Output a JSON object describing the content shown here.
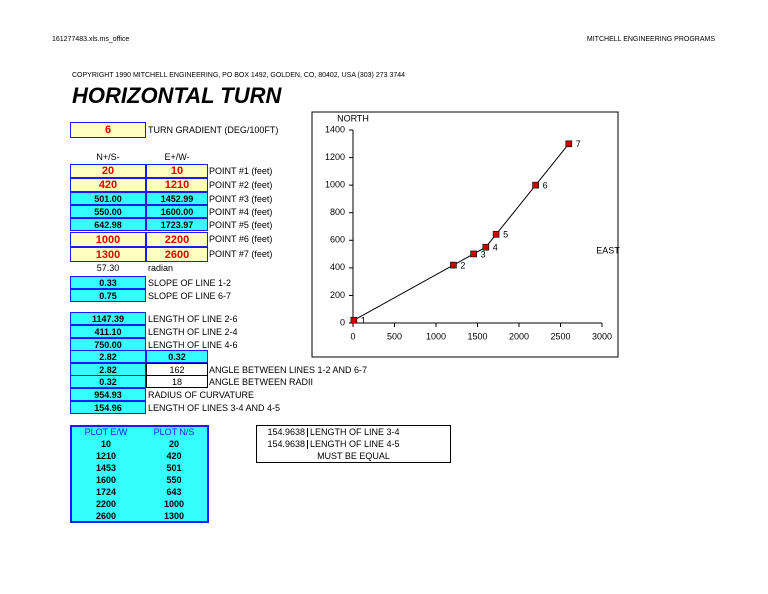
{
  "sheet": {
    "file": "161277483.xls.ms_office",
    "company": "MITCHELL ENGINEERING PROGRAMS",
    "copyright": "COPYRIGHT 1990 MITCHELL ENGINEERING, PO BOX 1492, GOLDEN, CO, 80402, USA  (303) 273 3744",
    "title": "HORIZONTAL TURN",
    "gradient": {
      "value": "6",
      "label": "TURN GRADIENT (DEG/100FT)"
    },
    "headers": [
      "N+/S-",
      "E+/W-"
    ],
    "points": [
      [
        "20",
        "10",
        "POINT #1 (feet)"
      ],
      [
        "420",
        "1210",
        "POINT #2 (feet)"
      ],
      [
        "501.00",
        "1452.99",
        "POINT #3 (feet)"
      ],
      [
        "550.00",
        "1600.00",
        "POINT #4 (feet)"
      ],
      [
        "642.98",
        "1723.97",
        "POINT #5 (feet)"
      ],
      [
        "1000",
        "2200",
        "POINT #6 (feet)"
      ],
      [
        "1300",
        "2600",
        "POINT #7 (feet)"
      ]
    ],
    "radian": [
      "57.30",
      "radian"
    ],
    "slopes": [
      [
        "0.33",
        "SLOPE OF LINE 1-2"
      ],
      [
        "0.75",
        "SLOPE OF LINE 6-7"
      ]
    ],
    "calcs": [
      {
        "a": "1147.39",
        "label": "LENGTH OF LINE 2-6"
      },
      {
        "a": "411.10",
        "label": "LENGTH OF LINE 2-4"
      },
      {
        "a": "750.00",
        "label": "LENGTH OF LINE 4-6"
      },
      {
        "a": "2.82",
        "b": "0.32"
      },
      {
        "a": "2.82",
        "b": "162",
        "label": "ANGLE BETWEEN LINES 1-2 AND 6-7"
      },
      {
        "a": "0.32",
        "b": "18",
        "label": "ANGLE BETWEEN RADII"
      },
      {
        "a": "954.93",
        "label": "RADIUS OF CURVATURE"
      },
      {
        "a": "154.96",
        "label": "LENGTH OF LINES 3-4 AND 4-5"
      }
    ],
    "plot": {
      "headers": [
        "PLOT E/W",
        "PLOT N/S"
      ],
      "rows": [
        [
          "10",
          "20"
        ],
        [
          "1210",
          "420"
        ],
        [
          "1453",
          "501"
        ],
        [
          "1600",
          "550"
        ],
        [
          "1724",
          "643"
        ],
        [
          "2200",
          "1000"
        ],
        [
          "2600",
          "1300"
        ]
      ]
    },
    "check": {
      "rows": [
        [
          "154.9638",
          "LENGTH OF LINE 3-4"
        ],
        [
          "154.9638",
          "LENGTH OF LINE 4-5"
        ]
      ],
      "note": "MUST BE EQUAL"
    }
  },
  "chart_data": {
    "type": "line",
    "y_label": "NORTH",
    "x_label": "EAST",
    "x": [
      10,
      1210,
      1453,
      1600,
      1724,
      2200,
      2600
    ],
    "values": [
      20,
      420,
      501,
      550,
      643,
      1000,
      1300
    ],
    "point_labels": [
      "1",
      "2",
      "3",
      "4",
      "5",
      "6",
      "7"
    ],
    "color": "#000000",
    "marker_color": "#cc0000",
    "xlim": [
      0,
      3000
    ],
    "xticks": [
      0,
      500,
      1000,
      1500,
      2000,
      2500,
      3000
    ],
    "ylim": [
      0,
      1400
    ],
    "yticks": [
      0,
      200,
      400,
      600,
      800,
      1000,
      1200,
      1400
    ]
  }
}
